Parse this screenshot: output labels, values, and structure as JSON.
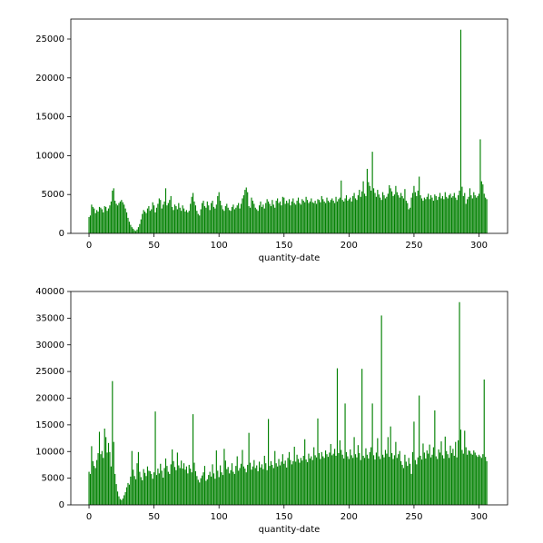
{
  "chart_data": [
    {
      "type": "bar",
      "xlabel": "quantity-date",
      "color": "#008000",
      "xlim": [
        -14,
        322
      ],
      "ylim": [
        0,
        27570
      ],
      "xticks": [
        0,
        50,
        100,
        150,
        200,
        250,
        300
      ],
      "yticks": [
        0,
        5000,
        10000,
        15000,
        20000,
        25000
      ],
      "x": [
        0,
        1,
        2,
        3,
        4,
        5,
        6,
        7,
        8,
        9,
        10,
        11,
        12,
        13,
        14,
        15,
        16,
        17,
        18,
        19,
        20,
        21,
        22,
        23,
        24,
        25,
        26,
        27,
        28,
        29,
        30,
        31,
        32,
        33,
        34,
        35,
        36,
        37,
        38,
        39,
        40,
        41,
        42,
        43,
        44,
        45,
        46,
        47,
        48,
        49,
        50,
        51,
        52,
        53,
        54,
        55,
        56,
        57,
        58,
        59,
        60,
        61,
        62,
        63,
        64,
        65,
        66,
        67,
        68,
        69,
        70,
        71,
        72,
        73,
        74,
        75,
        76,
        77,
        78,
        79,
        80,
        81,
        82,
        83,
        84,
        85,
        86,
        87,
        88,
        89,
        90,
        91,
        92,
        93,
        94,
        95,
        96,
        97,
        98,
        99,
        100,
        101,
        102,
        103,
        104,
        105,
        106,
        107,
        108,
        109,
        110,
        111,
        112,
        113,
        114,
        115,
        116,
        117,
        118,
        119,
        120,
        121,
        122,
        123,
        124,
        125,
        126,
        127,
        128,
        129,
        130,
        131,
        132,
        133,
        134,
        135,
        136,
        137,
        138,
        139,
        140,
        141,
        142,
        143,
        144,
        145,
        146,
        147,
        148,
        149,
        150,
        151,
        152,
        153,
        154,
        155,
        156,
        157,
        158,
        159,
        160,
        161,
        162,
        163,
        164,
        165,
        166,
        167,
        168,
        169,
        170,
        171,
        172,
        173,
        174,
        175,
        176,
        177,
        178,
        179,
        180,
        181,
        182,
        183,
        184,
        185,
        186,
        187,
        188,
        189,
        190,
        191,
        192,
        193,
        194,
        195,
        196,
        197,
        198,
        199,
        200,
        201,
        202,
        203,
        204,
        205,
        206,
        207,
        208,
        209,
        210,
        211,
        212,
        213,
        214,
        215,
        216,
        217,
        218,
        219,
        220,
        221,
        222,
        223,
        224,
        225,
        226,
        227,
        228,
        229,
        230,
        231,
        232,
        233,
        234,
        235,
        236,
        237,
        238,
        239,
        240,
        241,
        242,
        243,
        244,
        245,
        246,
        247,
        248,
        249,
        250,
        251,
        252,
        253,
        254,
        255,
        256,
        257,
        258,
        259,
        260,
        261,
        262,
        263,
        264,
        265,
        266,
        267,
        268,
        269,
        270,
        271,
        272,
        273,
        274,
        275,
        276,
        277,
        278,
        279,
        280,
        281,
        282,
        283,
        284,
        285,
        286,
        287,
        288,
        289,
        290,
        291,
        292,
        293,
        294,
        295,
        296,
        297,
        298,
        299,
        300,
        301,
        302,
        303,
        304,
        305,
        306
      ],
      "values": [
        2100,
        2300,
        3700,
        3400,
        3200,
        2600,
        3000,
        2800,
        3400,
        3300,
        3100,
        2700,
        3500,
        3400,
        2900,
        3200,
        3600,
        4100,
        5500,
        5800,
        4200,
        3800,
        3600,
        3900,
        4100,
        4300,
        4000,
        3700,
        3200,
        2700,
        2000,
        1500,
        1100,
        800,
        600,
        400,
        300,
        500,
        800,
        1200,
        1800,
        2500,
        3000,
        2800,
        2600,
        3200,
        3500,
        2900,
        3100,
        4000,
        3600,
        2700,
        3300,
        3800,
        4500,
        4300,
        3200,
        3700,
        4100,
        5800,
        3600,
        3900,
        4300,
        4800,
        3400,
        3000,
        3700,
        3500,
        3100,
        3900,
        3300,
        2900,
        3600,
        3200,
        2800,
        3000,
        2700,
        2900,
        3800,
        4700,
        5200,
        4100,
        3600,
        2900,
        2500,
        2300,
        3100,
        3900,
        4200,
        3500,
        3300,
        4100,
        3600,
        3000,
        3900,
        4200,
        3400,
        3200,
        3700,
        4800,
        5300,
        4200,
        3600,
        3100,
        2900,
        3500,
        3800,
        3300,
        3000,
        2900,
        3400,
        3700,
        3100,
        3300,
        3600,
        3900,
        3200,
        3800,
        4500,
        4900,
        5600,
        5900,
        5300,
        3500,
        3300,
        4600,
        4200,
        3800,
        3300,
        3100,
        2900,
        3600,
        4100,
        3400,
        3700,
        3200,
        3900,
        4400,
        4100,
        3800,
        3500,
        4300,
        3700,
        3300,
        4200,
        4500,
        3900,
        4100,
        3600,
        4700,
        4600,
        3800,
        4200,
        3900,
        4400,
        3600,
        4100,
        4500,
        3900,
        3700,
        4200,
        4600,
        3900,
        3700,
        4400,
        4200,
        4000,
        4700,
        4300,
        3900,
        4100,
        4500,
        4000,
        3900,
        4200,
        3800,
        4400,
        4300,
        4000,
        4800,
        4400,
        4100,
        3900,
        4600,
        4200,
        4000,
        4300,
        4500,
        4200,
        3900,
        4700,
        4100,
        4400,
        4600,
        6800,
        4300,
        4100,
        4500,
        4900,
        4200,
        4400,
        4600,
        4100,
        4800,
        5200,
        4500,
        4300,
        4900,
        5600,
        4700,
        5400,
        6700,
        5100,
        4800,
        8300,
        6600,
        6100,
        5500,
        10500,
        5800,
        5200,
        4700,
        5600,
        5000,
        4600,
        4300,
        5300,
        4900,
        4500,
        4700,
        5100,
        6200,
        5800,
        5400,
        4800,
        5000,
        6100,
        5300,
        4900,
        4600,
        5200,
        4800,
        4500,
        5700,
        4200,
        3900,
        3100,
        3300,
        4600,
        5200,
        6100,
        5300,
        4800,
        5500,
        7300,
        4900,
        4500,
        4200,
        4600,
        4400,
        4700,
        5100,
        4400,
        4900,
        4600,
        4200,
        5000,
        4800,
        4300,
        4700,
        5200,
        4500,
        4800,
        4400,
        5300,
        4700,
        4500,
        4900,
        5100,
        4600,
        4800,
        5200,
        4600,
        4300,
        4900,
        5500,
        26200,
        6000,
        4800,
        5200,
        3800,
        4400,
        4700,
        5800,
        4900,
        4500,
        5300,
        4900,
        4600,
        4800,
        5100,
        12100,
        6700,
        6300,
        5100,
        4600,
        4400
      ]
    },
    {
      "type": "bar",
      "xlabel": "quantity-date",
      "color": "#008000",
      "xlim": [
        -14,
        322
      ],
      "ylim": [
        0,
        40000
      ],
      "xticks": [
        0,
        50,
        100,
        150,
        200,
        250,
        300
      ],
      "yticks": [
        0,
        5000,
        10000,
        15000,
        20000,
        25000,
        30000,
        35000,
        40000
      ],
      "x": [
        0,
        1,
        2,
        3,
        4,
        5,
        6,
        7,
        8,
        9,
        10,
        11,
        12,
        13,
        14,
        15,
        16,
        17,
        18,
        19,
        20,
        21,
        22,
        23,
        24,
        25,
        26,
        27,
        28,
        29,
        30,
        31,
        32,
        33,
        34,
        35,
        36,
        37,
        38,
        39,
        40,
        41,
        42,
        43,
        44,
        45,
        46,
        47,
        48,
        49,
        50,
        51,
        52,
        53,
        54,
        55,
        56,
        57,
        58,
        59,
        60,
        61,
        62,
        63,
        64,
        65,
        66,
        67,
        68,
        69,
        70,
        71,
        72,
        73,
        74,
        75,
        76,
        77,
        78,
        79,
        80,
        81,
        82,
        83,
        84,
        85,
        86,
        87,
        88,
        89,
        90,
        91,
        92,
        93,
        94,
        95,
        96,
        97,
        98,
        99,
        100,
        101,
        102,
        103,
        104,
        105,
        106,
        107,
        108,
        109,
        110,
        111,
        112,
        113,
        114,
        115,
        116,
        117,
        118,
        119,
        120,
        121,
        122,
        123,
        124,
        125,
        126,
        127,
        128,
        129,
        130,
        131,
        132,
        133,
        134,
        135,
        136,
        137,
        138,
        139,
        140,
        141,
        142,
        143,
        144,
        145,
        146,
        147,
        148,
        149,
        150,
        151,
        152,
        153,
        154,
        155,
        156,
        157,
        158,
        159,
        160,
        161,
        162,
        163,
        164,
        165,
        166,
        167,
        168,
        169,
        170,
        171,
        172,
        173,
        174,
        175,
        176,
        177,
        178,
        179,
        180,
        181,
        182,
        183,
        184,
        185,
        186,
        187,
        188,
        189,
        190,
        191,
        192,
        193,
        194,
        195,
        196,
        197,
        198,
        199,
        200,
        201,
        202,
        203,
        204,
        205,
        206,
        207,
        208,
        209,
        210,
        211,
        212,
        213,
        214,
        215,
        216,
        217,
        218,
        219,
        220,
        221,
        222,
        223,
        224,
        225,
        226,
        227,
        228,
        229,
        230,
        231,
        232,
        233,
        234,
        235,
        236,
        237,
        238,
        239,
        240,
        241,
        242,
        243,
        244,
        245,
        246,
        247,
        248,
        249,
        250,
        251,
        252,
        253,
        254,
        255,
        256,
        257,
        258,
        259,
        260,
        261,
        262,
        263,
        264,
        265,
        266,
        267,
        268,
        269,
        270,
        271,
        272,
        273,
        274,
        275,
        276,
        277,
        278,
        279,
        280,
        281,
        282,
        283,
        284,
        285,
        286,
        287,
        288,
        289,
        290,
        291,
        292,
        293,
        294,
        295,
        296,
        297,
        298,
        299,
        300,
        301,
        302,
        303,
        304,
        305,
        306
      ],
      "values": [
        6200,
        5800,
        11000,
        8200,
        7300,
        6900,
        8400,
        9700,
        13700,
        9500,
        10100,
        8800,
        14300,
        12700,
        9800,
        11600,
        9900,
        7200,
        23200,
        11800,
        5800,
        3900,
        2500,
        1600,
        1100,
        900,
        1200,
        1800,
        2400,
        3300,
        4100,
        3800,
        5300,
        10100,
        6600,
        5400,
        4800,
        7800,
        9900,
        6200,
        5200,
        4600,
        6700,
        6000,
        5400,
        7200,
        6400,
        6300,
        5800,
        4900,
        6100,
        17500,
        5600,
        6800,
        5900,
        7700,
        6400,
        5100,
        6900,
        8700,
        7300,
        6200,
        5800,
        7600,
        10400,
        8200,
        7100,
        6500,
        9800,
        7400,
        6900,
        8300,
        6800,
        7800,
        6600,
        7200,
        5900,
        7500,
        6800,
        6100,
        17000,
        7900,
        6300,
        5400,
        4700,
        4200,
        5000,
        5500,
        6100,
        7300,
        4500,
        4800,
        5600,
        6200,
        5300,
        7600,
        5900,
        4900,
        10200,
        6400,
        5200,
        7400,
        6100,
        5600,
        10500,
        8300,
        6700,
        7100,
        5900,
        6500,
        7800,
        6200,
        5800,
        7300,
        9100,
        6400,
        6900,
        7700,
        10300,
        7200,
        6800,
        6100,
        7500,
        13500,
        7900,
        6600,
        7200,
        8400,
        6900,
        7400,
        6300,
        8100,
        7000,
        7600,
        6700,
        9200,
        7800,
        6500,
        16100,
        7300,
        8200,
        7500,
        6900,
        10100,
        7800,
        7200,
        8600,
        7400,
        8100,
        9500,
        7700,
        8300,
        7000,
        8800,
        9900,
        8400,
        7600,
        8200,
        10900,
        8100,
        9400,
        8600,
        7900,
        8800,
        8300,
        9200,
        12300,
        8500,
        8000,
        9600,
        8700,
        9100,
        8400,
        10800,
        9300,
        8900,
        16200,
        9700,
        8600,
        9900,
        9100,
        8800,
        10200,
        9500,
        9000,
        9800,
        11400,
        9300,
        9600,
        10500,
        9200,
        25600,
        9700,
        12100,
        10300,
        9400,
        8700,
        19000,
        9900,
        9100,
        8600,
        10400,
        9300,
        8800,
        12700,
        9500,
        8900,
        11200,
        9700,
        8400,
        25500,
        9200,
        8800,
        10600,
        9400,
        8700,
        9900,
        10800,
        19000,
        9300,
        8500,
        9800,
        12500,
        9100,
        8600,
        35500,
        9400,
        8900,
        10300,
        9600,
        12700,
        9000,
        14700,
        9700,
        8600,
        9300,
        11800,
        8800,
        9500,
        10100,
        8200,
        7500,
        6900,
        9400,
        8100,
        7300,
        8800,
        7700,
        5800,
        9900,
        15600,
        8400,
        7600,
        8900,
        20500,
        9200,
        8500,
        11500,
        9800,
        8700,
        10200,
        9600,
        11300,
        8900,
        9400,
        10800,
        17700,
        9100,
        8600,
        10400,
        9800,
        11900,
        9300,
        8700,
        12800,
        10100,
        9500,
        8800,
        11100,
        9700,
        10500,
        9200,
        11800,
        8900,
        12100,
        38000,
        14100,
        10300,
        9600,
        13900,
        10800,
        9400,
        10200,
        10100,
        9600,
        9400,
        10200,
        9800,
        9300,
        9000,
        9400,
        9100,
        8800,
        9500,
        23500,
        9000,
        8200
      ]
    }
  ]
}
